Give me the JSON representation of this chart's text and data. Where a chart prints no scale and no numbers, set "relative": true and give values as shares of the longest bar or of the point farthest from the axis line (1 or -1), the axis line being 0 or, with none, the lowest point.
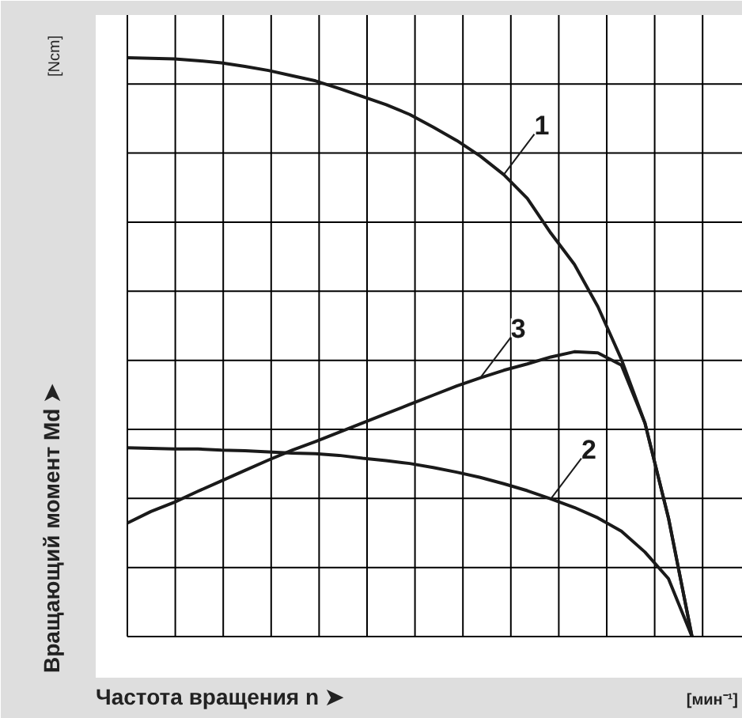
{
  "chart_data": {
    "type": "line",
    "relative": true,
    "grid": true,
    "xlabel": "Частота вращения n ➤",
    "ylabel": "Вращающий момент Md ➤",
    "annotations": [
      "[Ncm]",
      "[мин⁻¹]"
    ],
    "categories": [
      null,
      null,
      null,
      null,
      null,
      null,
      null,
      null,
      null,
      null,
      null,
      null,
      null,
      null,
      null,
      null,
      null,
      null,
      null,
      null,
      null,
      null,
      null,
      null,
      null
    ],
    "series": [
      {
        "name": "1",
        "color": "#1a1a1a",
        "values": [
          1.0,
          0.999,
          0.998,
          0.995,
          0.991,
          0.985,
          0.978,
          0.969,
          0.96,
          0.947,
          0.933,
          0.919,
          0.902,
          0.88,
          0.857,
          0.83,
          0.798,
          0.757,
          0.697,
          0.643,
          0.57,
          0.479,
          0.369,
          0.205,
          0
        ]
      },
      {
        "name": "2",
        "color": "#1a1a1a",
        "values": [
          0.326,
          0.325,
          0.324,
          0.324,
          0.322,
          0.321,
          0.319,
          0.317,
          0.316,
          0.313,
          0.308,
          0.304,
          0.299,
          0.292,
          0.284,
          0.275,
          0.264,
          0.252,
          0.238,
          0.223,
          0.205,
          0.182,
          0.146,
          0.1,
          0
        ]
      },
      {
        "name": "3",
        "color": "#1a1a1a",
        "values": [
          0.196,
          0.216,
          0.232,
          0.251,
          0.269,
          0.287,
          0.305,
          0.322,
          0.337,
          0.353,
          0.369,
          0.385,
          0.401,
          0.417,
          0.433,
          0.447,
          0.46,
          0.471,
          0.483,
          0.492,
          0.49,
          0.469,
          0.369,
          0.205,
          0
        ]
      }
    ]
  }
}
